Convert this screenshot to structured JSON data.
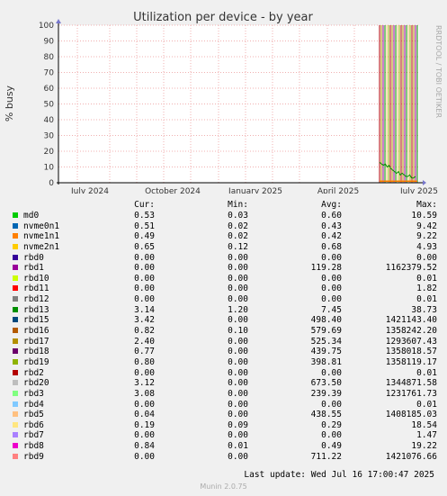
{
  "chart_data": {
    "type": "line",
    "title": "Utilization per device - by year",
    "ylabel": "% busy",
    "ylim": [
      0,
      100
    ],
    "yticks": [
      0,
      10,
      20,
      30,
      40,
      50,
      60,
      70,
      80,
      90,
      100
    ],
    "xticks": [
      "July 2024",
      "October 2024",
      "January 2025",
      "April 2025",
      "July 2025"
    ],
    "watermark": "RRDTOOL / TOBI OETIKER",
    "columns": {
      "cur": "Cur:",
      "min": "Min:",
      "avg": "Avg:",
      "max": "Max:"
    },
    "series": [
      {
        "name": "md0",
        "color": "#00cc00",
        "cur": "0.53",
        "min": "0.03",
        "avg": "0.60",
        "max": "10.59"
      },
      {
        "name": "nvme0n1",
        "color": "#0066b3",
        "cur": "0.51",
        "min": "0.02",
        "avg": "0.43",
        "max": "9.42"
      },
      {
        "name": "nvme1n1",
        "color": "#ff8000",
        "cur": "0.49",
        "min": "0.02",
        "avg": "0.42",
        "max": "9.22"
      },
      {
        "name": "nvme2n1",
        "color": "#ffcc00",
        "cur": "0.65",
        "min": "0.12",
        "avg": "0.68",
        "max": "4.93"
      },
      {
        "name": "rbd0",
        "color": "#330099",
        "cur": "0.00",
        "min": "0.00",
        "avg": "0.00",
        "max": "0.00"
      },
      {
        "name": "rbd1",
        "color": "#990099",
        "cur": "0.00",
        "min": "0.00",
        "avg": "119.28",
        "max": "1162379.52"
      },
      {
        "name": "rbd10",
        "color": "#ccff00",
        "cur": "0.00",
        "min": "0.00",
        "avg": "0.00",
        "max": "0.01"
      },
      {
        "name": "rbd11",
        "color": "#ff0000",
        "cur": "0.00",
        "min": "0.00",
        "avg": "0.00",
        "max": "1.82"
      },
      {
        "name": "rbd12",
        "color": "#808080",
        "cur": "0.00",
        "min": "0.00",
        "avg": "0.00",
        "max": "0.01"
      },
      {
        "name": "rbd13",
        "color": "#008f00",
        "cur": "3.14",
        "min": "1.20",
        "avg": "7.45",
        "max": "38.73"
      },
      {
        "name": "rbd15",
        "color": "#00487d",
        "cur": "3.42",
        "min": "0.00",
        "avg": "498.40",
        "max": "1421143.40"
      },
      {
        "name": "rbd16",
        "color": "#b35a00",
        "cur": "0.82",
        "min": "0.10",
        "avg": "579.69",
        "max": "1358242.20"
      },
      {
        "name": "rbd17",
        "color": "#b38f00",
        "cur": "2.40",
        "min": "0.00",
        "avg": "525.34",
        "max": "1293607.43"
      },
      {
        "name": "rbd18",
        "color": "#6b006b",
        "cur": "0.77",
        "min": "0.00",
        "avg": "439.75",
        "max": "1358018.57"
      },
      {
        "name": "rbd19",
        "color": "#8fb300",
        "cur": "0.80",
        "min": "0.00",
        "avg": "398.81",
        "max": "1358119.17"
      },
      {
        "name": "rbd2",
        "color": "#b30000",
        "cur": "0.00",
        "min": "0.00",
        "avg": "0.00",
        "max": "0.01"
      },
      {
        "name": "rbd20",
        "color": "#bebebe",
        "cur": "3.12",
        "min": "0.00",
        "avg": "673.50",
        "max": "1344871.58"
      },
      {
        "name": "rbd3",
        "color": "#80ff80",
        "cur": "3.08",
        "min": "0.00",
        "avg": "239.39",
        "max": "1231761.73"
      },
      {
        "name": "rbd4",
        "color": "#80c9ff",
        "cur": "0.00",
        "min": "0.00",
        "avg": "0.00",
        "max": "0.01"
      },
      {
        "name": "rbd5",
        "color": "#ffc080",
        "cur": "0.04",
        "min": "0.00",
        "avg": "438.55",
        "max": "1408185.03"
      },
      {
        "name": "rbd6",
        "color": "#ffe680",
        "cur": "0.19",
        "min": "0.09",
        "avg": "0.29",
        "max": "18.54"
      },
      {
        "name": "rbd7",
        "color": "#aa80ff",
        "cur": "0.00",
        "min": "0.00",
        "avg": "0.00",
        "max": "1.47"
      },
      {
        "name": "rbd8",
        "color": "#ee00cc",
        "cur": "0.84",
        "min": "0.01",
        "avg": "0.49",
        "max": "19.22"
      },
      {
        "name": "rbd9",
        "color": "#ff8080",
        "cur": "0.00",
        "min": "0.00",
        "avg": "711.22",
        "max": "1421076.66"
      }
    ],
    "spike_colors": [
      "#b30000",
      "#00cc00",
      "#b38f00",
      "#ffcc00",
      "#990099",
      "#ff8080",
      "#008f00",
      "#b35a00",
      "#ffc080",
      "#6b006b",
      "#8fb300",
      "#00487d"
    ]
  },
  "footer": {
    "last_update": "Last update: Wed Jul 16 17:00:47 2025",
    "version": "Munin 2.0.75"
  }
}
